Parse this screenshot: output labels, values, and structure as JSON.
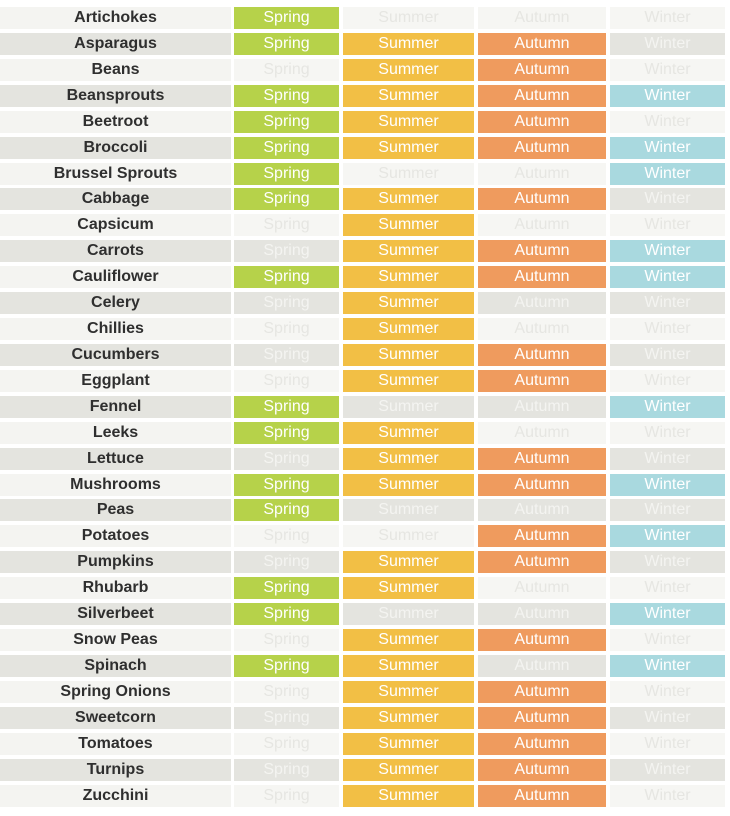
{
  "seasons": [
    "Spring",
    "Summer",
    "Autumn",
    "Winter"
  ],
  "colors": {
    "spring": "#b6d24a",
    "summer": "#f2bf45",
    "autumn": "#ef9b5e",
    "winter": "#a9d9df"
  },
  "rows": [
    {
      "name": "Artichokes",
      "spring": true,
      "summer": false,
      "autumn": false,
      "winter": false
    },
    {
      "name": "Asparagus",
      "spring": true,
      "summer": true,
      "autumn": true,
      "winter": false
    },
    {
      "name": "Beans",
      "spring": false,
      "summer": true,
      "autumn": true,
      "winter": false
    },
    {
      "name": "Beansprouts",
      "spring": true,
      "summer": true,
      "autumn": true,
      "winter": true
    },
    {
      "name": "Beetroot",
      "spring": true,
      "summer": true,
      "autumn": true,
      "winter": false
    },
    {
      "name": "Broccoli",
      "spring": true,
      "summer": true,
      "autumn": true,
      "winter": true
    },
    {
      "name": "Brussel Sprouts",
      "spring": true,
      "summer": false,
      "autumn": false,
      "winter": true
    },
    {
      "name": "Cabbage",
      "spring": true,
      "summer": true,
      "autumn": true,
      "winter": false
    },
    {
      "name": "Capsicum",
      "spring": false,
      "summer": true,
      "autumn": false,
      "winter": false
    },
    {
      "name": "Carrots",
      "spring": false,
      "summer": true,
      "autumn": true,
      "winter": true
    },
    {
      "name": "Cauliflower",
      "spring": true,
      "summer": true,
      "autumn": true,
      "winter": true
    },
    {
      "name": "Celery",
      "spring": false,
      "summer": true,
      "autumn": false,
      "winter": false
    },
    {
      "name": "Chillies",
      "spring": false,
      "summer": true,
      "autumn": false,
      "winter": false
    },
    {
      "name": "Cucumbers",
      "spring": false,
      "summer": true,
      "autumn": true,
      "winter": false
    },
    {
      "name": "Eggplant",
      "spring": false,
      "summer": true,
      "autumn": true,
      "winter": false
    },
    {
      "name": "Fennel",
      "spring": true,
      "summer": false,
      "autumn": false,
      "winter": true
    },
    {
      "name": "Leeks",
      "spring": true,
      "summer": true,
      "autumn": false,
      "winter": false
    },
    {
      "name": "Lettuce",
      "spring": false,
      "summer": true,
      "autumn": true,
      "winter": false
    },
    {
      "name": "Mushrooms",
      "spring": true,
      "summer": true,
      "autumn": true,
      "winter": true
    },
    {
      "name": "Peas",
      "spring": true,
      "summer": false,
      "autumn": false,
      "winter": false
    },
    {
      "name": "Potatoes",
      "spring": false,
      "summer": false,
      "autumn": true,
      "winter": true
    },
    {
      "name": "Pumpkins",
      "spring": false,
      "summer": true,
      "autumn": true,
      "winter": false
    },
    {
      "name": "Rhubarb",
      "spring": true,
      "summer": true,
      "autumn": false,
      "winter": false
    },
    {
      "name": "Silverbeet",
      "spring": true,
      "summer": false,
      "autumn": false,
      "winter": true
    },
    {
      "name": "Snow Peas",
      "spring": false,
      "summer": true,
      "autumn": true,
      "winter": false
    },
    {
      "name": "Spinach",
      "spring": true,
      "summer": true,
      "autumn": false,
      "winter": true
    },
    {
      "name": "Spring Onions",
      "spring": false,
      "summer": true,
      "autumn": true,
      "winter": false
    },
    {
      "name": "Sweetcorn",
      "spring": false,
      "summer": true,
      "autumn": true,
      "winter": false
    },
    {
      "name": "Tomatoes",
      "spring": false,
      "summer": true,
      "autumn": true,
      "winter": false
    },
    {
      "name": "Turnips",
      "spring": false,
      "summer": true,
      "autumn": true,
      "winter": false
    },
    {
      "name": "Zucchini",
      "spring": false,
      "summer": true,
      "autumn": true,
      "winter": false
    }
  ]
}
